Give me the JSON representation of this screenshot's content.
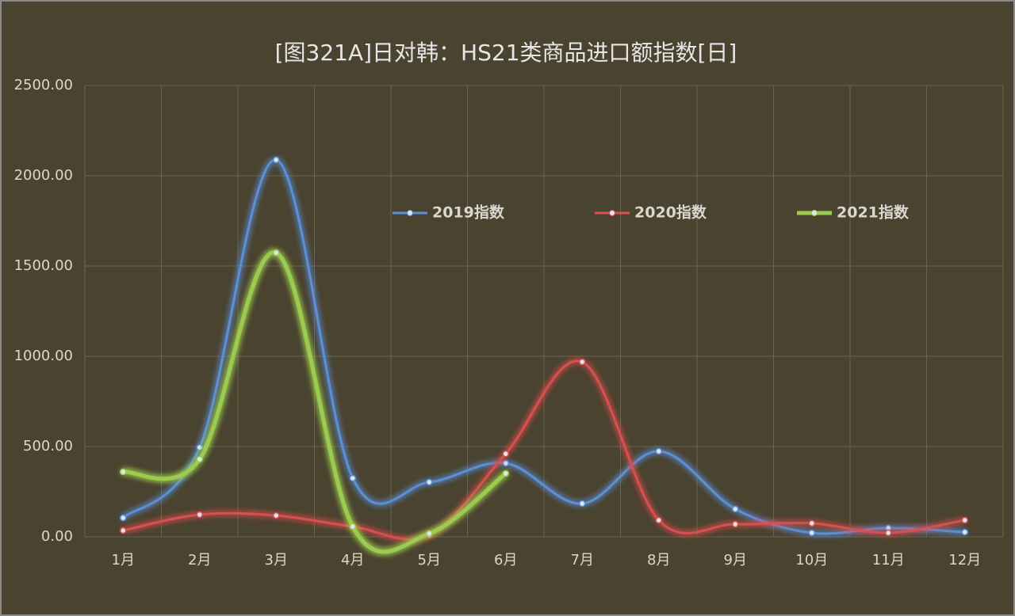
{
  "chart_data": {
    "type": "line",
    "title": "[图321A]日对韩：HS21类商品进口额指数[日]",
    "categories": [
      "1月",
      "2月",
      "3月",
      "4月",
      "5月",
      "6月",
      "7月",
      "8月",
      "9月",
      "10月",
      "11月",
      "12月"
    ],
    "series": [
      {
        "name": "2019指数",
        "color": "#5b8fd6",
        "width": 3,
        "values": [
          105,
          495,
          2088,
          325,
          303,
          408,
          184,
          474,
          154,
          22,
          48,
          26
        ]
      },
      {
        "name": "2020指数",
        "color": "#d9504f",
        "width": 3,
        "values": [
          35,
          123,
          118,
          57,
          9,
          460,
          969,
          92,
          70,
          75,
          22,
          92
        ]
      },
      {
        "name": "2021指数",
        "color": "#9ccc4f",
        "width": 5,
        "values": [
          360,
          430,
          1574,
          57,
          18,
          351,
          null,
          null,
          null,
          null,
          null,
          null
        ]
      }
    ],
    "ylim": [
      0,
      2500
    ],
    "yticks": [
      {
        "value": 0,
        "label": "0.00"
      },
      {
        "value": 500,
        "label": "500.00"
      },
      {
        "value": 1000,
        "label": "1000.00"
      },
      {
        "value": 1500,
        "label": "1500.00"
      },
      {
        "value": 2000,
        "label": "2000.00"
      },
      {
        "value": 2500,
        "label": "2500.00"
      }
    ],
    "grid": true,
    "smooth": true,
    "legend": "top"
  }
}
